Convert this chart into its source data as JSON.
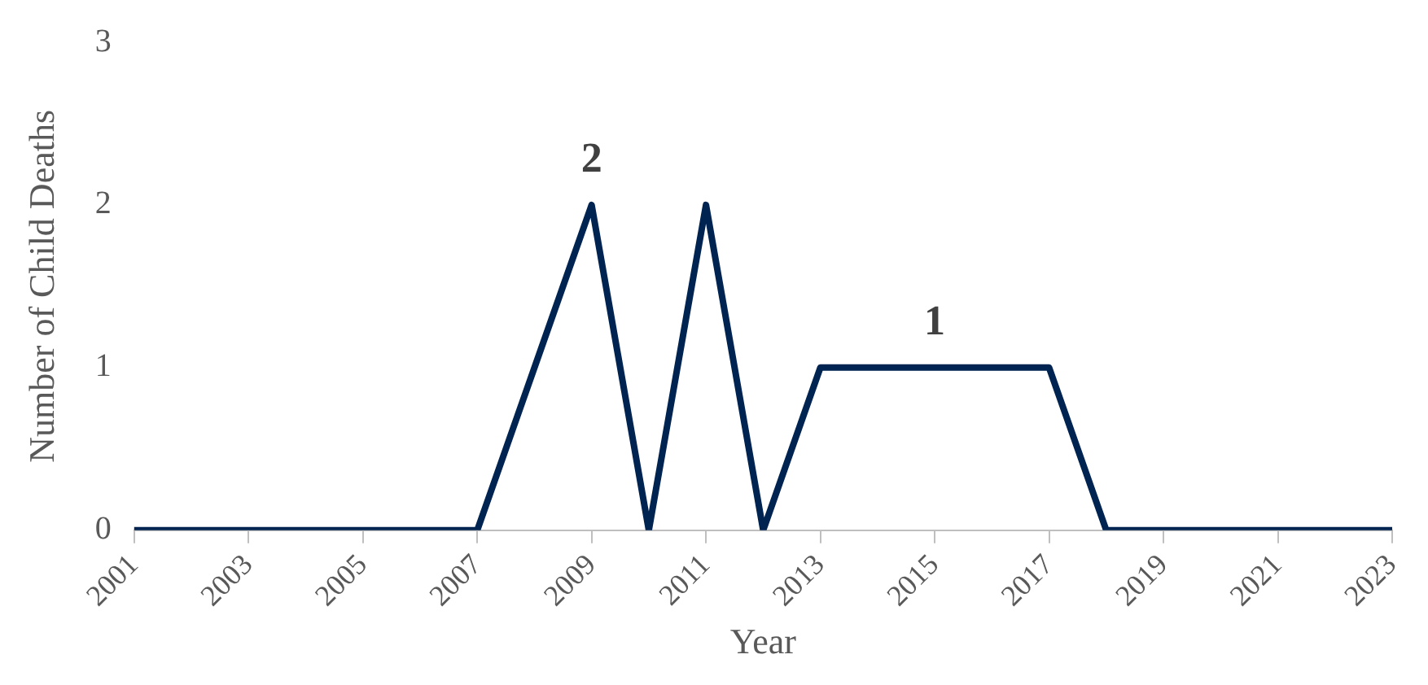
{
  "chart_data": {
    "type": "line",
    "xlabel": "Year",
    "ylabel": "Number of Child Deaths",
    "x": [
      2001,
      2002,
      2003,
      2004,
      2005,
      2006,
      2007,
      2008,
      2009,
      2010,
      2011,
      2012,
      2013,
      2014,
      2015,
      2016,
      2017,
      2018,
      2019,
      2020,
      2021,
      2022,
      2023
    ],
    "series": [
      {
        "color": "#002452",
        "values": [
          0,
          0,
          0,
          0,
          0,
          0,
          0,
          1,
          2,
          0,
          2,
          0,
          1,
          1,
          1,
          1,
          1,
          0,
          0,
          0,
          0,
          0,
          0
        ]
      }
    ],
    "xlim": [
      2001,
      2023
    ],
    "xticks": [
      2001,
      2003,
      2005,
      2007,
      2009,
      2011,
      2013,
      2015,
      2017,
      2019,
      2021,
      2023
    ],
    "ylim": [
      0,
      3
    ],
    "yticks": [
      0,
      1,
      2,
      3
    ],
    "annotations": [
      {
        "text": "2",
        "x": 2009,
        "y": 2
      },
      {
        "text": "1",
        "x": 2015,
        "y": 1
      }
    ],
    "grid": false,
    "legend": false,
    "marker": "none",
    "line_style": "solid"
  }
}
